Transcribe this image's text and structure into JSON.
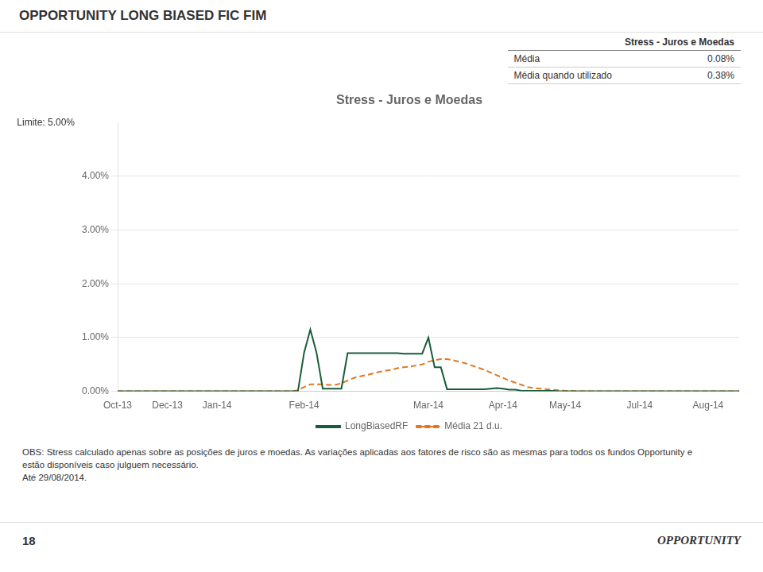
{
  "header": "OPPORTUNITY LONG BIASED FIC FIM",
  "notes": [
    "OBS: Stress calculado apenas sobre as posições de juros e moedas. As variações aplicadas aos fatores de risco são as mesmas para todos os fundos Opportunity e",
    "estão disponíveis caso julguem necessário.",
    "Até 29/08/2014."
  ],
  "footer": [
    "18",
    "OPPORTUNITY"
  ],
  "chart_data": {
    "type": "line",
    "title": "Stress - Juros e Moedas",
    "categories": [
      "Oct-13",
      null,
      null,
      null,
      null,
      null,
      null,
      null,
      "Dec-13",
      null,
      null,
      null,
      null,
      null,
      null,
      null,
      "Jan-14",
      null,
      null,
      null,
      null,
      null,
      null,
      null,
      null,
      null,
      null,
      null,
      null,
      null,
      "Feb-14",
      null,
      null,
      null,
      null,
      null,
      null,
      null,
      null,
      null,
      null,
      null,
      null,
      null,
      null,
      null,
      null,
      null,
      null,
      null,
      "Mar-14",
      null,
      null,
      null,
      null,
      null,
      null,
      null,
      null,
      null,
      null,
      null,
      "Apr-14",
      null,
      null,
      null,
      null,
      null,
      null,
      null,
      null,
      null,
      "May-14",
      null,
      null,
      null,
      null,
      null,
      null,
      null,
      null,
      null,
      null,
      null,
      "Jul-14",
      null,
      null,
      null,
      null,
      null,
      null,
      null,
      null,
      null,
      null,
      "Aug-14",
      null,
      null,
      null,
      null,
      null
    ],
    "series": [
      {
        "name": "LongBiasedRF",
        "color": "#1a5c3a",
        "line_style": "solid",
        "values": [
          0.0,
          0.0,
          0.0,
          0.0,
          0.0,
          0.0,
          0.0,
          0.0,
          0.0,
          0.0,
          0.0,
          0.0,
          0.0,
          0.0,
          0.0,
          0.0,
          0.0,
          0.0,
          0.0,
          0.0,
          0.0,
          0.0,
          0.0,
          0.0,
          0.0,
          0.0,
          0.0,
          0.0,
          0.0,
          0.0,
          0.72,
          1.15,
          0.72,
          0.05,
          0.05,
          0.05,
          0.05,
          0.71,
          0.71,
          0.71,
          0.71,
          0.71,
          0.71,
          0.71,
          0.71,
          0.71,
          0.7,
          0.7,
          0.7,
          0.7,
          1.0,
          0.45,
          0.45,
          0.04,
          0.04,
          0.04,
          0.04,
          0.04,
          0.04,
          0.04,
          0.05,
          0.06,
          0.05,
          0.03,
          0.03,
          0.01,
          0.01,
          0.01,
          0.01,
          0.01,
          0.01,
          0.0,
          0.0,
          0.0,
          0.0,
          0.0,
          0.0,
          0.0,
          0.0,
          0.0,
          0.0,
          0.0,
          0.0,
          0.0,
          0.0,
          0.0,
          0.0,
          0.0,
          0.0,
          0.0,
          0.0,
          0.0,
          0.0,
          0.0,
          0.0,
          0.0,
          0.0,
          0.0,
          0.0,
          0.0,
          0.0
        ]
      },
      {
        "name": "Média 21 d.u.",
        "color": "#e07820",
        "line_style": "dashed",
        "values": [
          0.0,
          0.0,
          0.0,
          0.0,
          0.0,
          0.0,
          0.0,
          0.0,
          0.0,
          0.0,
          0.0,
          0.0,
          0.0,
          0.0,
          0.0,
          0.0,
          0.0,
          0.0,
          0.0,
          0.0,
          0.0,
          0.0,
          0.0,
          0.0,
          0.0,
          0.0,
          0.0,
          0.0,
          0.0,
          0.02,
          0.08,
          0.13,
          0.13,
          0.13,
          0.12,
          0.12,
          0.15,
          0.2,
          0.25,
          0.28,
          0.3,
          0.33,
          0.36,
          0.38,
          0.4,
          0.43,
          0.45,
          0.46,
          0.48,
          0.5,
          0.55,
          0.58,
          0.6,
          0.6,
          0.58,
          0.55,
          0.52,
          0.48,
          0.44,
          0.4,
          0.35,
          0.3,
          0.25,
          0.2,
          0.16,
          0.12,
          0.08,
          0.06,
          0.05,
          0.04,
          0.03,
          0.02,
          0.01,
          0.01,
          0.0,
          0.0,
          0.0,
          0.0,
          0.0,
          0.0,
          0.0,
          0.0,
          0.0,
          0.0,
          0.0,
          0.0,
          0.0,
          0.0,
          0.0,
          0.0,
          0.0,
          0.0,
          0.0,
          0.0,
          0.0,
          0.0,
          0.0,
          0.0,
          0.0,
          0.0,
          0.0
        ]
      }
    ],
    "ylim": [
      0,
      5.0
    ],
    "yticks": [
      {
        "value": 0.0,
        "label": "0.00%"
      },
      {
        "value": 1.0,
        "label": "1.00%"
      },
      {
        "value": 2.0,
        "label": "2.00%"
      },
      {
        "value": 3.0,
        "label": "3.00%"
      },
      {
        "value": 4.0,
        "label": "4.00%"
      }
    ],
    "grid": true,
    "legend": "bottom",
    "annotations": [
      {
        "text": "Limite:",
        "y": 5.0,
        "value_label": "5.00%"
      }
    ],
    "table": {
      "header": "Stress - Juros e Moedas",
      "rows": [
        {
          "label": "Média",
          "value": 0.08,
          "value_label": "0.08%"
        },
        {
          "label": "Média quando utilizado",
          "value": 0.38,
          "value_label": "0.38%"
        }
      ]
    }
  }
}
